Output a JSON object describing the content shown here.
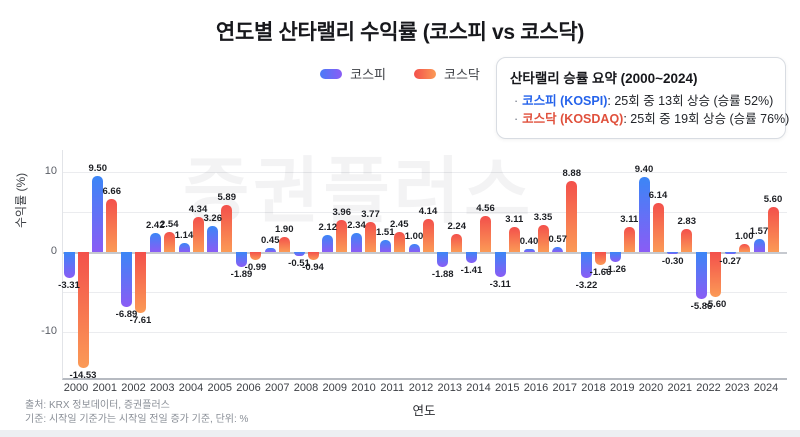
{
  "title": "연도별 산타랠리 수익률 (코스피 vs 코스닥)",
  "legend": [
    {
      "label": "코스피",
      "color_start": "#4a7bf7",
      "color_end": "#8a5cf5"
    },
    {
      "label": "코스닥",
      "color_start": "#f3504b",
      "color_end": "#fb9a56"
    }
  ],
  "summary_box": {
    "title": "산타랠리 승률 요약 (2000~2024)",
    "items": [
      {
        "bullet": "·",
        "name": "코스피 (KOSPI)",
        "text": ": 25회 중 13회 상승 (승률 52%)",
        "color": "#2563eb"
      },
      {
        "bullet": "·",
        "name": "코스닥 (KOSDAQ)",
        "text": ": 25회 중 19회 상승 (승률 76%)",
        "color": "#e0503c"
      }
    ]
  },
  "watermark": "증권플러스",
  "chart_data": {
    "type": "bar",
    "title": "연도별 산타랠리 수익률 (코스피 vs 코스닥)",
    "xlabel": "연도",
    "ylabel": "수익률 (%)",
    "ylim": [
      -15.75,
      12.75
    ],
    "yticks": [
      10,
      0,
      -10
    ],
    "gridlines": [
      10,
      5,
      0,
      -5,
      -10
    ],
    "grid": "horizontal",
    "legend_position": "top-center",
    "categories": [
      2000,
      2001,
      2002,
      2003,
      2004,
      2005,
      2006,
      2007,
      2008,
      2009,
      2010,
      2011,
      2012,
      2013,
      2014,
      2015,
      2016,
      2017,
      2018,
      2019,
      2020,
      2021,
      2022,
      2023,
      2024
    ],
    "series": [
      {
        "name": "코스피",
        "values": [
          -3.31,
          9.5,
          -6.89,
          2.42,
          1.14,
          3.26,
          -1.89,
          0.45,
          -0.51,
          2.12,
          2.34,
          1.51,
          1.0,
          -1.88,
          -1.41,
          -3.11,
          0.4,
          0.57,
          -3.22,
          -1.26,
          9.4,
          -0.3,
          -5.86,
          -0.27,
          1.57
        ]
      },
      {
        "name": "코스닥",
        "values": [
          -14.53,
          6.66,
          -7.61,
          2.54,
          4.34,
          5.89,
          -0.99,
          1.9,
          -0.94,
          3.96,
          3.77,
          2.45,
          4.14,
          2.24,
          4.56,
          3.11,
          3.35,
          8.88,
          -1.66,
          3.11,
          6.14,
          2.83,
          -5.6,
          1.0,
          5.6
        ]
      }
    ]
  },
  "footer": {
    "line1": "출처: KRX 정보데이터, 증권플러스",
    "line2": "기준: 시작일 기준가는 시작일 전일 증가 기준, 단위: %"
  }
}
